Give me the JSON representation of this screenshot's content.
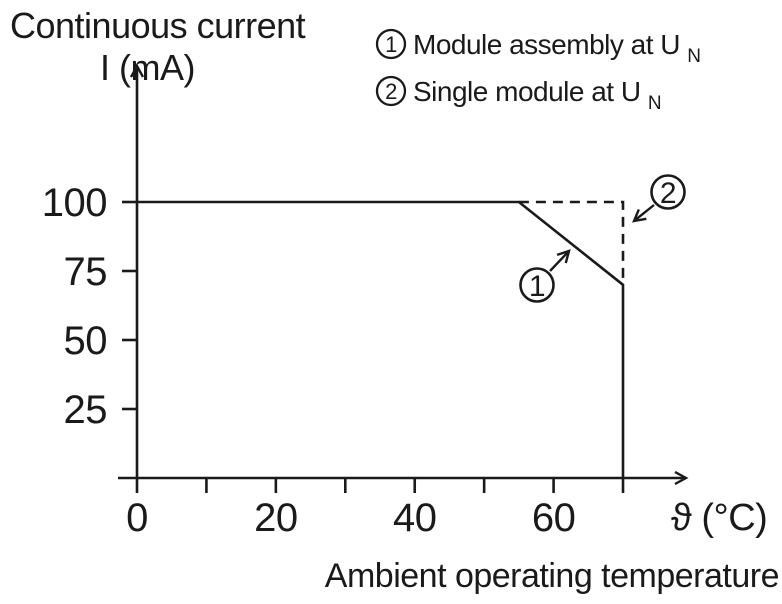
{
  "figure": {
    "background": "#ffffff",
    "ink_color": "#1a1a1a"
  },
  "title": {
    "line1": "Continuous current",
    "line2": "I (mA)"
  },
  "legend": {
    "items": [
      {
        "marker": "1",
        "text": "Module assembly at U",
        "subscript": "N"
      },
      {
        "marker": "2",
        "text": "Single module at U",
        "subscript": "N"
      }
    ]
  },
  "chart_data": {
    "type": "line",
    "title": "Continuous current I (mA)",
    "ylabel": "I (mA)",
    "xlabel": "Ambient operating temperature",
    "x_unit_label": "ϑ (°C)",
    "xlim": [
      0,
      70
    ],
    "ylim": [
      0,
      100
    ],
    "grid": false,
    "legend_position": "top-right",
    "x_axis": {
      "ticks": [
        0,
        10,
        20,
        30,
        40,
        50,
        60,
        70
      ],
      "labeled_ticks": [
        {
          "value": 0,
          "label": "0"
        },
        {
          "value": 20,
          "label": "20"
        },
        {
          "value": 40,
          "label": "40"
        },
        {
          "value": 60,
          "label": "60"
        }
      ]
    },
    "y_axis": {
      "ticks": [
        {
          "value": 25,
          "label": "25"
        },
        {
          "value": 50,
          "label": "50"
        },
        {
          "value": 75,
          "label": "75"
        },
        {
          "value": 100,
          "label": "100"
        }
      ]
    },
    "series": [
      {
        "id": "1",
        "name": "Module assembly at UN",
        "style": "solid",
        "points": [
          [
            0,
            100
          ],
          [
            55,
            100
          ],
          [
            70,
            70
          ],
          [
            70,
            0
          ]
        ]
      },
      {
        "id": "2",
        "name": "Single module at UN",
        "style": "dashed",
        "points": [
          [
            55,
            100
          ],
          [
            70,
            100
          ],
          [
            70,
            70
          ]
        ]
      }
    ],
    "annotations": [
      {
        "marker": "1",
        "target": "solid derating curve"
      },
      {
        "marker": "2",
        "target": "dashed single-module limit"
      }
    ]
  }
}
